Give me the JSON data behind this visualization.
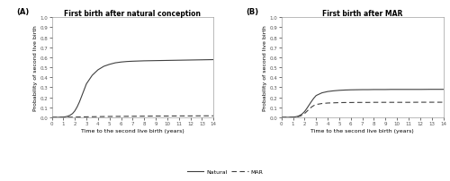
{
  "panel_A_title": "First birth after natural conception",
  "panel_B_title": "First birth after MAR",
  "xlabel": "Time to the second live birth (years)",
  "ylabel": "Probability of second live birth",
  "panel_A_label": "(A)",
  "panel_B_label": "(B)",
  "xlim": [
    0,
    14
  ],
  "ylim": [
    0.0,
    1.0
  ],
  "yticks": [
    0.0,
    0.1,
    0.2,
    0.3,
    0.4,
    0.5,
    0.6,
    0.7,
    0.8,
    0.9,
    1.0
  ],
  "xticks": [
    0,
    1,
    2,
    3,
    4,
    5,
    6,
    7,
    8,
    9,
    10,
    11,
    12,
    13,
    14
  ],
  "legend_natural": "Natural",
  "legend_mar": "MAR",
  "line_color": "#404040",
  "background_color": "#ffffff",
  "panel_A_natural_x": [
    0,
    0.5,
    1.0,
    1.2,
    1.4,
    1.6,
    1.8,
    2.0,
    2.2,
    2.4,
    2.6,
    2.8,
    3.0,
    3.5,
    4.0,
    4.5,
    5.0,
    5.5,
    6.0,
    6.5,
    7.0,
    7.5,
    8.0,
    8.5,
    9.0,
    9.5,
    10.0,
    10.5,
    11.0,
    11.5,
    12.0,
    12.5,
    13.0,
    13.5,
    14.0
  ],
  "panel_A_natural_y": [
    0.0,
    0.0,
    0.002,
    0.006,
    0.012,
    0.022,
    0.038,
    0.065,
    0.105,
    0.155,
    0.215,
    0.275,
    0.335,
    0.42,
    0.475,
    0.51,
    0.53,
    0.545,
    0.553,
    0.558,
    0.561,
    0.563,
    0.565,
    0.566,
    0.567,
    0.568,
    0.569,
    0.57,
    0.571,
    0.572,
    0.573,
    0.574,
    0.575,
    0.576,
    0.577
  ],
  "panel_A_mar_x": [
    0,
    0.5,
    1.0,
    1.2,
    1.4,
    1.6,
    1.8,
    2.0,
    3.0,
    4.0,
    5.0,
    6.0,
    7.0,
    8.0,
    9.0,
    10.0,
    11.0,
    12.0,
    13.0,
    14.0
  ],
  "panel_A_mar_y": [
    0.0,
    0.0,
    0.0,
    0.001,
    0.001,
    0.002,
    0.002,
    0.003,
    0.005,
    0.007,
    0.009,
    0.01,
    0.011,
    0.012,
    0.013,
    0.013,
    0.014,
    0.014,
    0.015,
    0.015
  ],
  "panel_B_natural_x": [
    0,
    0.5,
    1.0,
    1.2,
    1.4,
    1.6,
    1.8,
    2.0,
    2.2,
    2.4,
    2.6,
    2.8,
    3.0,
    3.5,
    4.0,
    4.5,
    5.0,
    5.5,
    6.0,
    6.5,
    7.0,
    7.5,
    8.0,
    8.5,
    9.0,
    9.5,
    10.0,
    11.0,
    12.0,
    13.0,
    14.0
  ],
  "panel_B_natural_y": [
    0.0,
    0.0,
    0.002,
    0.005,
    0.01,
    0.02,
    0.035,
    0.058,
    0.09,
    0.125,
    0.16,
    0.192,
    0.218,
    0.245,
    0.258,
    0.265,
    0.27,
    0.273,
    0.275,
    0.276,
    0.277,
    0.277,
    0.278,
    0.278,
    0.278,
    0.279,
    0.279,
    0.279,
    0.279,
    0.28,
    0.28
  ],
  "panel_B_mar_x": [
    0,
    0.5,
    1.0,
    1.2,
    1.4,
    1.6,
    1.8,
    2.0,
    2.2,
    2.4,
    2.6,
    2.8,
    3.0,
    3.5,
    4.0,
    4.5,
    5.0,
    5.5,
    6.0,
    6.5,
    7.0,
    7.5,
    8.0,
    9.0,
    10.0,
    11.0,
    12.0,
    13.0,
    14.0
  ],
  "panel_B_mar_y": [
    0.0,
    0.0,
    0.001,
    0.003,
    0.006,
    0.012,
    0.022,
    0.038,
    0.06,
    0.083,
    0.103,
    0.118,
    0.128,
    0.138,
    0.143,
    0.145,
    0.147,
    0.148,
    0.148,
    0.149,
    0.149,
    0.149,
    0.15,
    0.15,
    0.15,
    0.15,
    0.151,
    0.151,
    0.151
  ]
}
